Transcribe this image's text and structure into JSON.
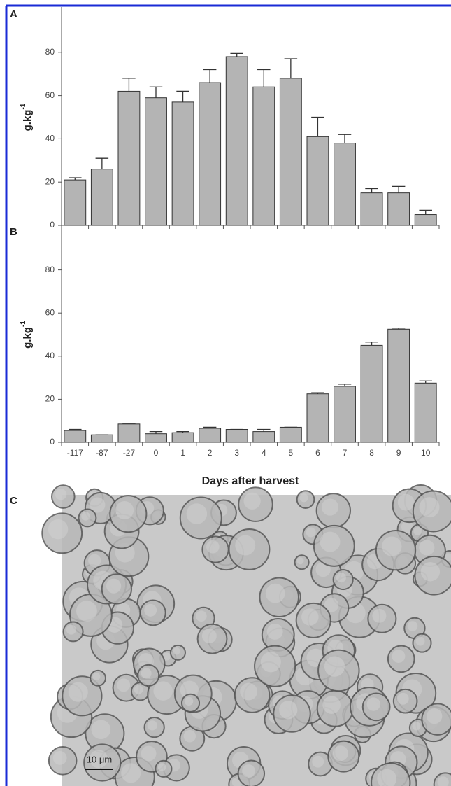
{
  "chart_data": [
    {
      "type": "bar",
      "panel_label": "A",
      "ylabel": "g.kg",
      "ylabel_sup": "-1",
      "values": [
        21,
        26,
        62,
        59,
        57,
        66,
        78,
        64,
        68,
        41,
        38,
        15,
        15,
        5
      ],
      "errors": [
        1,
        5,
        6,
        5,
        5,
        6,
        1.5,
        8,
        9,
        9,
        4,
        2,
        3,
        2
      ],
      "color": "#b4b4b4",
      "ylim": [
        0,
        100
      ],
      "yticks": [
        0,
        20,
        40,
        60,
        80
      ]
    },
    {
      "type": "bar",
      "panel_label": "B",
      "ylabel": "g.kg",
      "ylabel_sup": "-1",
      "categories": [
        "-117",
        "-87",
        "-27",
        "0",
        "1",
        "2",
        "3",
        "4",
        "5",
        "6",
        "7",
        "8",
        "9",
        "10"
      ],
      "values": [
        5.5,
        3.5,
        8.5,
        4,
        4.5,
        6.5,
        6,
        5,
        7,
        22.5,
        26,
        45,
        52.5,
        27.5
      ],
      "errors": [
        0.5,
        0,
        0,
        1,
        0.5,
        0.5,
        0,
        1,
        0,
        0.5,
        1,
        1.5,
        0.5,
        1
      ],
      "color": "#b4b4b4",
      "ylim": [
        0,
        100
      ],
      "yticks": [
        0,
        20,
        40,
        60,
        80
      ],
      "xlabel": "Days after harvest"
    }
  ],
  "panel_c": {
    "label": "C",
    "scale_bar": "10 μm"
  }
}
